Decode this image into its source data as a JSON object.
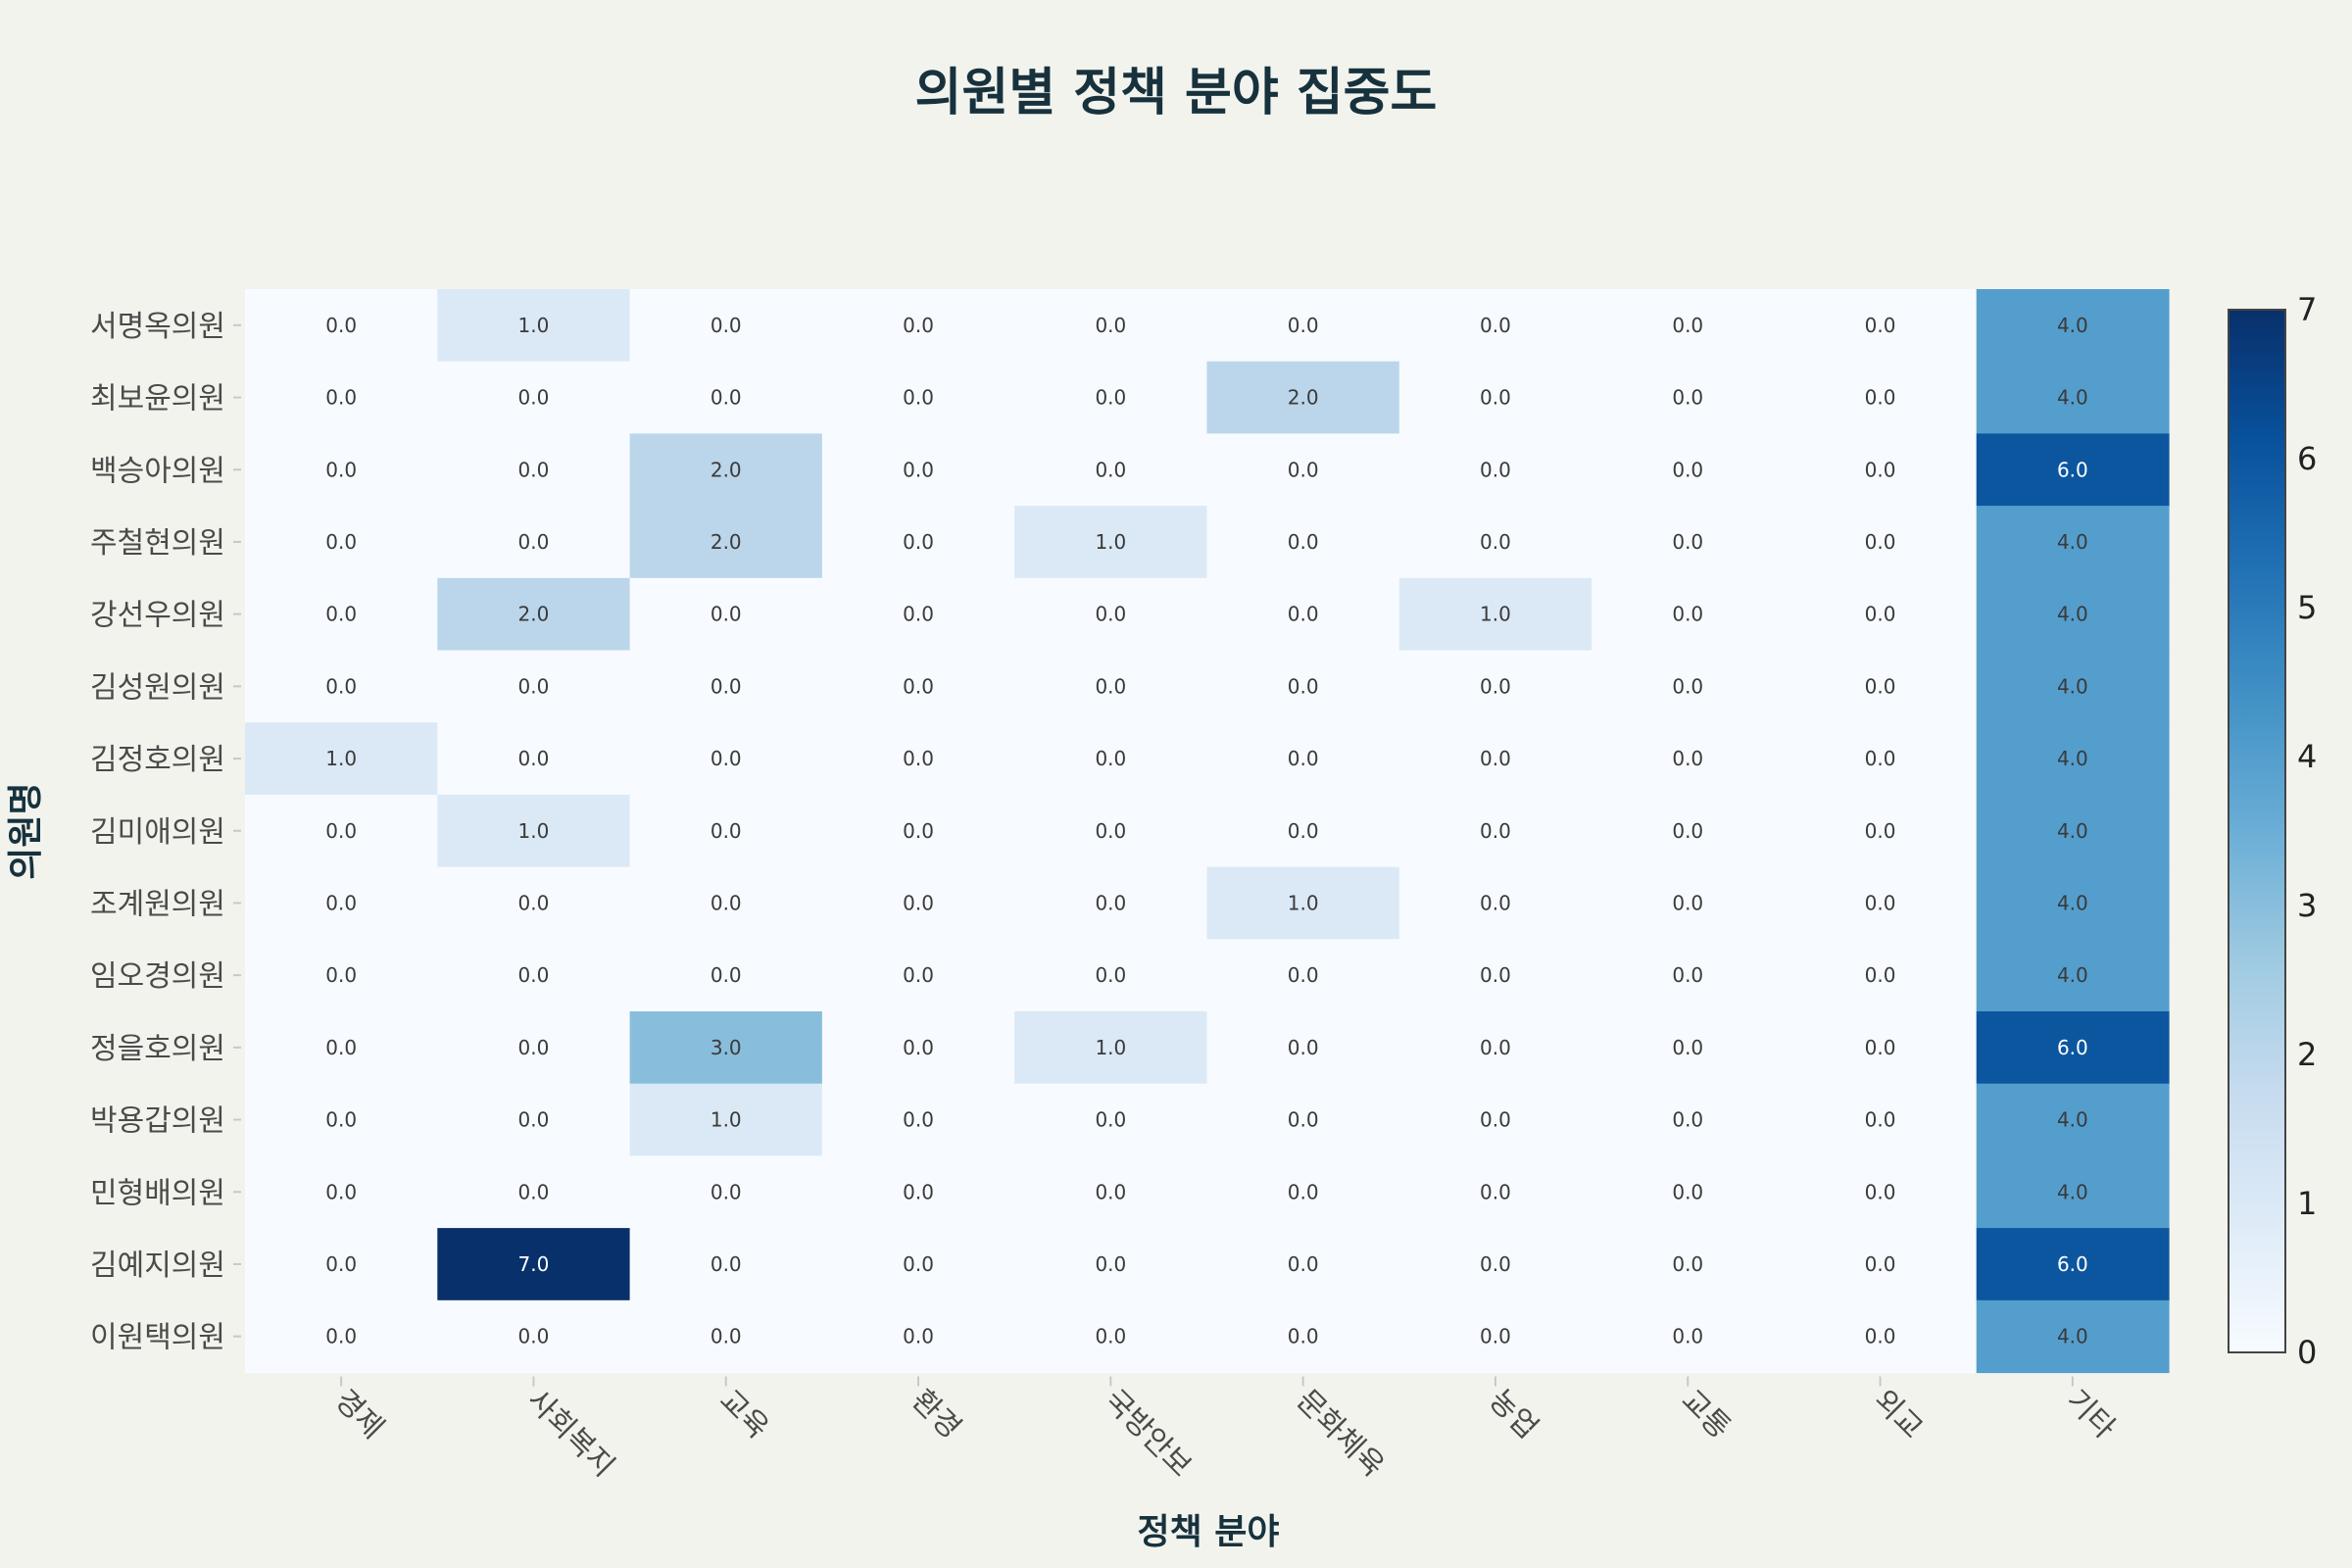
{
  "chart_data": {
    "type": "heatmap",
    "title": "의원별 정책 분야 집중도",
    "xlabel": "정책 분야",
    "ylabel": "의원명",
    "categories": [
      "경제",
      "사회복지",
      "교육",
      "환경",
      "국방안보",
      "문화체육",
      "농업",
      "교통",
      "외교",
      "기타"
    ],
    "rows": [
      "서명옥의원",
      "최보윤의원",
      "백승아의원",
      "주철현의원",
      "강선우의원",
      "김성원의원",
      "김정호의원",
      "김미애의원",
      "조계원의원",
      "임오경의원",
      "정을호의원",
      "박용갑의원",
      "민형배의원",
      "김예지의원",
      "이원택의원"
    ],
    "values": [
      [
        0,
        1,
        0,
        0,
        0,
        0,
        0,
        0,
        0,
        4
      ],
      [
        0,
        0,
        0,
        0,
        0,
        2,
        0,
        0,
        0,
        4
      ],
      [
        0,
        0,
        2,
        0,
        0,
        0,
        0,
        0,
        0,
        6
      ],
      [
        0,
        0,
        2,
        0,
        1,
        0,
        0,
        0,
        0,
        4
      ],
      [
        0,
        2,
        0,
        0,
        0,
        0,
        1,
        0,
        0,
        4
      ],
      [
        0,
        0,
        0,
        0,
        0,
        0,
        0,
        0,
        0,
        4
      ],
      [
        1,
        0,
        0,
        0,
        0,
        0,
        0,
        0,
        0,
        4
      ],
      [
        0,
        1,
        0,
        0,
        0,
        0,
        0,
        0,
        0,
        4
      ],
      [
        0,
        0,
        0,
        0,
        0,
        1,
        0,
        0,
        0,
        4
      ],
      [
        0,
        0,
        0,
        0,
        0,
        0,
        0,
        0,
        0,
        4
      ],
      [
        0,
        0,
        3,
        0,
        1,
        0,
        0,
        0,
        0,
        6
      ],
      [
        0,
        0,
        1,
        0,
        0,
        0,
        0,
        0,
        0,
        4
      ],
      [
        0,
        0,
        0,
        0,
        0,
        0,
        0,
        0,
        0,
        4
      ],
      [
        0,
        7,
        0,
        0,
        0,
        0,
        0,
        0,
        0,
        6
      ],
      [
        0,
        0,
        0,
        0,
        0,
        0,
        0,
        0,
        0,
        4
      ]
    ],
    "value_format": "0.0",
    "colorscale": "Blues",
    "zmin": 0,
    "zmax": 7,
    "colorbar_ticks": [
      0,
      1,
      2,
      3,
      4,
      5,
      6,
      7
    ],
    "colors": {
      "background": "#f3f3ee",
      "title": "#17323d"
    }
  }
}
